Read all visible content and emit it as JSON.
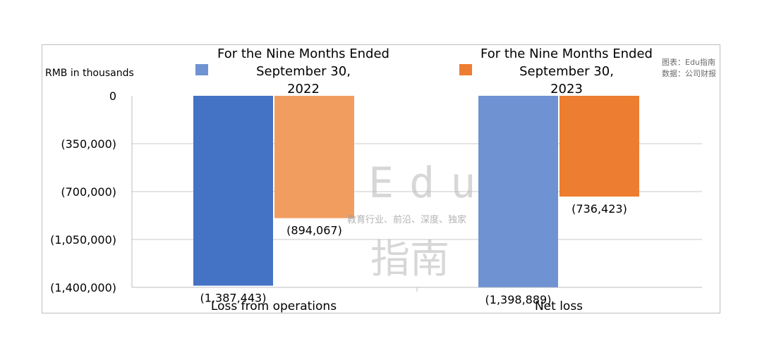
{
  "chart_data": {
    "type": "bar",
    "ylabel": "RMB in thousands",
    "categories": [
      "Loss from operations",
      "Net loss"
    ],
    "series": [
      {
        "name_lines": [
          "For the Nine Months Ended",
          "September 30,",
          "2022"
        ],
        "values": [
          -1387443,
          -1398889
        ],
        "labels": [
          "(1,387,443)",
          "(1,398,889)"
        ],
        "colors": [
          "#4472c4",
          "#6f93d2"
        ]
      },
      {
        "name_lines": [
          "For the Nine Months Ended",
          "September 30,",
          "2023"
        ],
        "values": [
          -894067,
          -736423
        ],
        "labels": [
          "(894,067)",
          "(736,423)"
        ],
        "colors": [
          "#f29d60",
          "#ed7d31"
        ]
      }
    ],
    "ylim": [
      -1400000,
      0
    ],
    "yticks": [
      0,
      -350000,
      -700000,
      -1050000,
      -1400000
    ],
    "ytick_labels": [
      "0",
      "(350,000)",
      "(700,000)",
      "(1,050,000)",
      "(1,400,000)"
    ],
    "grid": true,
    "legend": "top"
  },
  "source_note": {
    "line1": "图表：Edu指南",
    "line2": "数据：公司财报"
  },
  "watermark": {
    "latin": "Edu",
    "tagline": "教育行业、前沿、深度、独家",
    "chinese": "指南"
  }
}
